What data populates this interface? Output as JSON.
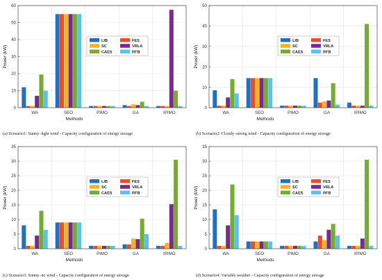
{
  "chart_data": [
    {
      "type": "bar",
      "caption": "(a) Scenario1: Sunny–light wind - Capacity configuration of energy storage",
      "xlabel": "Methods",
      "ylabel": "Power (kW)",
      "ylim": [
        0,
        60
      ],
      "yticks": [
        0,
        10,
        20,
        30,
        40,
        50,
        60
      ],
      "grid": true,
      "legend_position": "upper-center",
      "categories": [
        "WA",
        "SEO",
        "PIMO",
        "GA",
        "IPIMO"
      ],
      "series": [
        {
          "name": "LIB",
          "values": [
            12,
            55,
            1,
            1.5,
            1
          ]
        },
        {
          "name": "FES",
          "values": [
            1,
            55,
            1,
            1,
            1
          ]
        },
        {
          "name": "SC",
          "values": [
            1,
            55,
            1,
            2,
            1
          ]
        },
        {
          "name": "VRLA",
          "values": [
            7,
            55,
            1,
            1.5,
            57.5
          ]
        },
        {
          "name": "CAES",
          "values": [
            19.5,
            55,
            1,
            3.5,
            10
          ]
        },
        {
          "name": "RFB",
          "values": [
            10,
            55,
            1,
            1,
            1
          ]
        }
      ]
    },
    {
      "type": "bar",
      "caption": "(b) Scenario2: Cloudy–strong wind - Capacity configuration of energy storage",
      "xlabel": "Methods",
      "ylabel": "Power (kW)",
      "ylim": [
        0,
        50
      ],
      "yticks": [
        0,
        10,
        20,
        30,
        40,
        50
      ],
      "grid": true,
      "legend_position": "upper-center",
      "categories": [
        "WA",
        "SEO",
        "PIMO",
        "GA",
        "IPIMO"
      ],
      "series": [
        {
          "name": "LIB",
          "values": [
            8.5,
            14.5,
            1,
            14.5,
            2.5
          ]
        },
        {
          "name": "FES",
          "values": [
            1,
            14.5,
            1,
            2.5,
            1
          ]
        },
        {
          "name": "SC",
          "values": [
            1,
            14.5,
            1,
            3,
            1
          ]
        },
        {
          "name": "VRLA",
          "values": [
            5,
            14.5,
            1,
            3.5,
            1
          ]
        },
        {
          "name": "CAES",
          "values": [
            14,
            14.5,
            1,
            12,
            41
          ]
        },
        {
          "name": "RFB",
          "values": [
            7,
            14.5,
            1,
            1.5,
            1
          ]
        }
      ]
    },
    {
      "type": "bar",
      "caption": "(c) Scenario3: Sunny–no wind - Capacity configuration of energy storage",
      "xlabel": "Methods",
      "ylabel": "Power (kW)",
      "ylim": [
        0,
        35
      ],
      "yticks": [
        0,
        5,
        10,
        15,
        20,
        25,
        30,
        35
      ],
      "grid": true,
      "legend_position": "upper-center",
      "categories": [
        "WA",
        "SEO",
        "PIMO",
        "GA",
        "IPIMO"
      ],
      "series": [
        {
          "name": "LIB",
          "values": [
            8,
            9,
            1,
            1.5,
            1
          ]
        },
        {
          "name": "FES",
          "values": [
            1,
            9,
            1,
            1.5,
            1
          ]
        },
        {
          "name": "SC",
          "values": [
            1,
            9,
            1,
            3.5,
            2
          ]
        },
        {
          "name": "VRLA",
          "values": [
            4.5,
            9,
            1,
            3.3,
            15.3
          ]
        },
        {
          "name": "CAES",
          "values": [
            13,
            9,
            1,
            10.3,
            30.5
          ]
        },
        {
          "name": "RFB",
          "values": [
            6.5,
            9,
            1,
            5,
            1
          ]
        }
      ]
    },
    {
      "type": "bar",
      "caption": "(d) Scenario4: Variable weather - Capacity configuration of energy storage",
      "xlabel": "Methods",
      "ylabel": "Power (kW)",
      "ylim": [
        0,
        35
      ],
      "yticks": [
        0,
        5,
        10,
        15,
        20,
        25,
        30,
        35
      ],
      "grid": true,
      "legend_position": "upper-center",
      "categories": [
        "WA",
        "SEO",
        "PIMO",
        "GA",
        "IPIMO"
      ],
      "series": [
        {
          "name": "LIB",
          "values": [
            13.5,
            2.5,
            1,
            2.5,
            1
          ]
        },
        {
          "name": "FES",
          "values": [
            1,
            2.5,
            1,
            4.5,
            1
          ]
        },
        {
          "name": "SC",
          "values": [
            1,
            2.5,
            1,
            3,
            1
          ]
        },
        {
          "name": "VRLA",
          "values": [
            8,
            2.5,
            1,
            6.5,
            3.5
          ]
        },
        {
          "name": "CAES",
          "values": [
            22,
            2.5,
            1,
            8.5,
            30.5
          ]
        },
        {
          "name": "RFB",
          "values": [
            11.5,
            2.5,
            1,
            4.5,
            1
          ]
        }
      ]
    }
  ],
  "colors": {
    "LIB": "#1f6fc4",
    "FES": "#e5502a",
    "SC": "#f0b324",
    "VRLA": "#7a2a8e",
    "CAES": "#74ac2f",
    "RFB": "#5cc2ec",
    "grid": "#e3e3e3",
    "axis": "#444444"
  },
  "legend_order": [
    "LIB",
    "FES",
    "SC",
    "VRLA",
    "CAES",
    "RFB"
  ]
}
